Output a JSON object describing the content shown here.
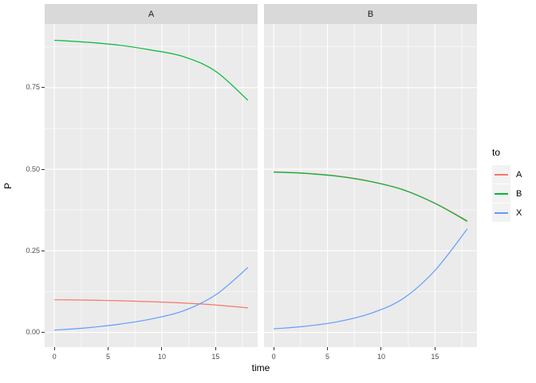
{
  "figure": {
    "x_axis_title": "time",
    "y_axis_title": "P",
    "background": "#FFFFFF",
    "panel_background": "#EBEBEB",
    "strip_background": "#D9D9D9",
    "grid_color": "#FFFFFF",
    "axis_text_color": "#4D4D4D",
    "tick_mark_color": "#333333"
  },
  "axes": {
    "x": {
      "domain": [
        -0.9,
        18.9
      ],
      "ticks": [
        {
          "value": 0,
          "label": "0"
        },
        {
          "value": 5,
          "label": "5"
        },
        {
          "value": 10,
          "label": "10"
        },
        {
          "value": 15,
          "label": "15"
        }
      ],
      "minor": [
        2.5,
        7.5,
        12.5,
        17.5
      ]
    },
    "y": {
      "domain": [
        -0.045,
        0.945
      ],
      "ticks": [
        {
          "value": 0.0,
          "label": "0.00"
        },
        {
          "value": 0.25,
          "label": "0.25"
        },
        {
          "value": 0.5,
          "label": "0.50"
        },
        {
          "value": 0.75,
          "label": "0.75"
        }
      ],
      "minor": [
        0.125,
        0.375,
        0.625,
        0.875
      ]
    }
  },
  "legend": {
    "title": "to",
    "key_fill": "#F2F2F2",
    "entries": [
      {
        "label": "A",
        "color": "#F8766D"
      },
      {
        "label": "B",
        "color": "#00BA38"
      },
      {
        "label": "X",
        "color": "#619CFF"
      }
    ]
  },
  "chart_data": {
    "type": "line",
    "title": "",
    "xlabel": "time",
    "ylabel": "P",
    "legend_title": "to",
    "legend_position": "right",
    "grid": true,
    "xlim": [
      0,
      18
    ],
    "ylim": [
      0,
      0.9
    ],
    "x": [
      0,
      3,
      6,
      9,
      12,
      15,
      18
    ],
    "facets": [
      {
        "label": "A",
        "series": [
          {
            "name": "A",
            "color": "#F8766D",
            "values": [
              0.1,
              0.099,
              0.097,
              0.094,
              0.09,
              0.084,
              0.075
            ]
          },
          {
            "name": "B",
            "color": "#00BA38",
            "values": [
              0.895,
              0.889,
              0.88,
              0.865,
              0.845,
              0.8,
              0.711
            ]
          },
          {
            "name": "X",
            "color": "#619CFF",
            "values": [
              0.007,
              0.014,
              0.025,
              0.041,
              0.066,
              0.115,
              0.199
            ]
          }
        ]
      },
      {
        "label": "B",
        "series": [
          {
            "name": "A",
            "color": "#F8766D",
            "values": [
              0.492,
              0.488,
              0.479,
              0.463,
              0.438,
              0.396,
              0.342
            ]
          },
          {
            "name": "B",
            "color": "#00BA38",
            "values": [
              0.491,
              0.487,
              0.478,
              0.462,
              0.437,
              0.395,
              0.34
            ]
          },
          {
            "name": "X",
            "color": "#619CFF",
            "values": [
              0.011,
              0.019,
              0.033,
              0.058,
              0.103,
              0.19,
              0.317
            ]
          }
        ]
      }
    ]
  }
}
